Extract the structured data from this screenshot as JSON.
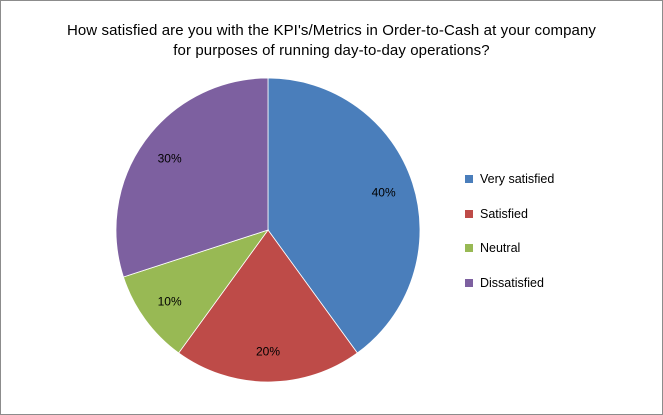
{
  "chart_data": {
    "type": "pie",
    "title_lines": [
      "How satisfied are you with the KPI's/Metrics in Order-to-Cash at your company",
      "for purposes of running day-to-day operations?"
    ],
    "slices": [
      {
        "label": "Very satisfied",
        "value": 40,
        "display": "40%",
        "color": "#4a7ebb"
      },
      {
        "label": "Satisfied",
        "value": 20,
        "display": "20%",
        "color": "#be4b48"
      },
      {
        "label": "Neutral",
        "value": 10,
        "display": "10%",
        "color": "#98b954"
      },
      {
        "label": "Dissatisfied",
        "value": 30,
        "display": "30%",
        "color": "#7d60a0"
      }
    ],
    "start_angle_deg": 0,
    "direction": "clockwise",
    "legend_position": "right"
  }
}
